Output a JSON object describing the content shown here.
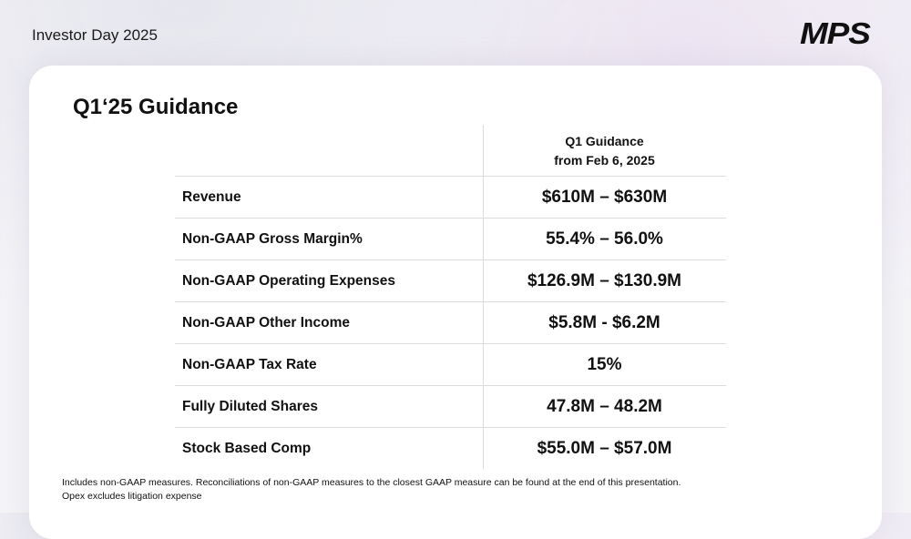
{
  "header": {
    "event": "Investor Day 2025",
    "logo": "MPS"
  },
  "title": "Q1‘25 Guidance",
  "table": {
    "column_header": [
      "Q1 Guidance",
      "from Feb 6, 2025"
    ],
    "rows": [
      [
        "Revenue",
        "$610M – $630M"
      ],
      [
        "Non-GAAP Gross Margin%",
        "55.4% – 56.0%"
      ],
      [
        "Non-GAAP Operating Expenses",
        "$126.9M – $130.9M"
      ],
      [
        "Non-GAAP Other Income",
        "$5.8M - $6.2M"
      ],
      [
        "Non-GAAP Tax Rate",
        "15%"
      ],
      [
        "Fully Diluted Shares",
        "47.8M – 48.2M"
      ],
      [
        "Stock Based Comp",
        "$55.0M – $57.0M"
      ]
    ]
  },
  "footnotes": [
    "Includes non-GAAP measures. Reconciliations of non-GAAP measures to the closest GAAP measure can be found at the end of this presentation.",
    "Opex excludes litigation expense"
  ]
}
